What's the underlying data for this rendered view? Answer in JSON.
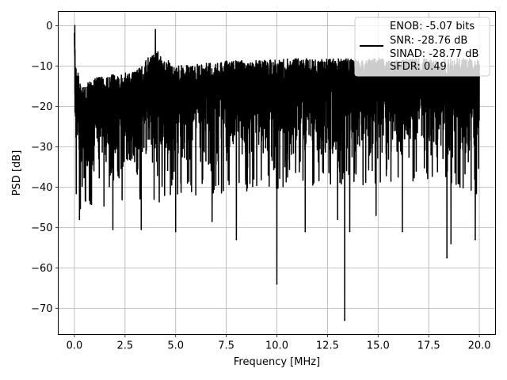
{
  "chart_data": {
    "type": "line",
    "xlabel": "Frequency [MHz]",
    "ylabel": "PSD [dB]",
    "xlim": [
      -0.8,
      20.8
    ],
    "ylim": [
      -76.5,
      3.5
    ],
    "xticks": [
      0.0,
      2.5,
      5.0,
      7.5,
      10.0,
      12.5,
      15.0,
      17.5,
      20.0
    ],
    "xtick_labels": [
      "0.0",
      "2.5",
      "5.0",
      "7.5",
      "10.0",
      "12.5",
      "15.0",
      "17.5",
      "20.0"
    ],
    "yticks": [
      0,
      -10,
      -20,
      -30,
      -40,
      -50,
      -60,
      -70
    ],
    "ytick_labels": [
      "0",
      "−10",
      "−20",
      "−30",
      "−40",
      "−50",
      "−60",
      "−70"
    ],
    "grid": true,
    "legend_position": "top-right",
    "legend": {
      "lines": [
        "ENOB: -5.07 bits",
        "SNR: -28.76 dB",
        "SINAD: -28.77 dB",
        "SFDR: 0.49"
      ]
    },
    "series": [
      {
        "color": "#000000",
        "envelope_x": [
          0.0,
          0.05,
          0.3,
          1.0,
          2.0,
          3.0,
          4.0,
          5.0,
          6.0,
          7.0,
          8.0,
          9.0,
          10.0,
          11.0,
          12.0,
          13.0,
          14.0,
          15.0,
          16.0,
          17.0,
          18.0,
          19.0,
          20.0
        ],
        "envelope_upper": [
          0.0,
          -8.0,
          -15.0,
          -13.0,
          -12.0,
          -11.5,
          -6.0,
          -10.0,
          -9.5,
          -9.0,
          -8.5,
          -8.5,
          -8.5,
          -8.0,
          -8.5,
          -8.0,
          -8.5,
          -8.0,
          -8.5,
          -8.0,
          -8.5,
          -8.0,
          -8.5
        ],
        "envelope_lower": [
          -20.0,
          -38.0,
          -42.0,
          -41.0,
          -41.0,
          -40.0,
          -40.0,
          -39.0,
          -38.0,
          -38.0,
          -37.0,
          -37.0,
          -37.0,
          -36.0,
          -36.0,
          -35.0,
          -36.0,
          -35.0,
          -35.0,
          -35.0,
          -35.0,
          -36.0,
          -38.0
        ],
        "dips": [
          {
            "x": 0.25,
            "y": -48.0
          },
          {
            "x": 1.9,
            "y": -50.5
          },
          {
            "x": 3.3,
            "y": -50.5
          },
          {
            "x": 5.0,
            "y": -51.0
          },
          {
            "x": 6.8,
            "y": -48.5
          },
          {
            "x": 8.0,
            "y": -53.0
          },
          {
            "x": 10.0,
            "y": -64.0
          },
          {
            "x": 11.4,
            "y": -51.0
          },
          {
            "x": 13.0,
            "y": -48.0
          },
          {
            "x": 13.35,
            "y": -73.0
          },
          {
            "x": 13.6,
            "y": -51.0
          },
          {
            "x": 14.9,
            "y": -47.0
          },
          {
            "x": 16.2,
            "y": -51.0
          },
          {
            "x": 18.4,
            "y": -57.5
          },
          {
            "x": 18.6,
            "y": -54.0
          },
          {
            "x": 19.8,
            "y": -53.0
          }
        ],
        "peaks": [
          {
            "x": 0.02,
            "y": 0.0
          },
          {
            "x": 4.0,
            "y": -1.0
          }
        ]
      }
    ]
  }
}
